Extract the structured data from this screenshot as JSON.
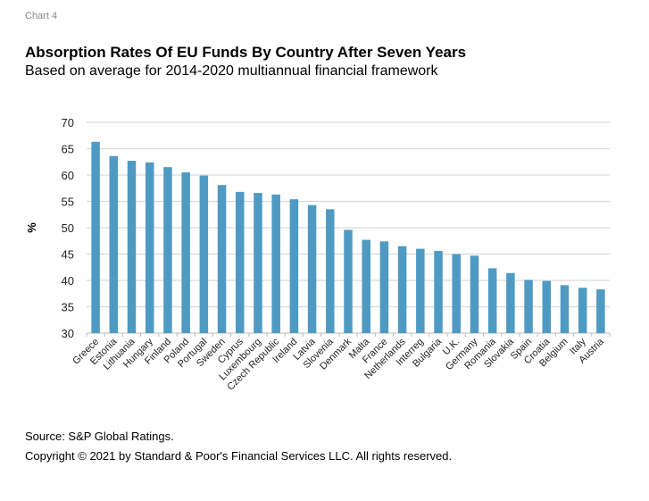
{
  "chart_label": "Chart 4",
  "title": "Absorption Rates Of EU Funds By Country After Seven Years",
  "subtitle": "Based on average for 2014-2020 multiannual financial framework",
  "source": "Source: S&P Global Ratings.",
  "copyright": "Copyright © 2021 by Standard & Poor's Financial Services LLC. All rights reserved.",
  "chart_data": {
    "type": "bar",
    "ylabel": "%",
    "xlabel": "",
    "ylim": [
      30,
      70
    ],
    "yticks": [
      30,
      35,
      40,
      45,
      50,
      55,
      60,
      65,
      70
    ],
    "grid": true,
    "bar_color": "#4f9ac3",
    "categories": [
      "Greece",
      "Estonia",
      "Lithuania",
      "Hungary",
      "Finland",
      "Poland",
      "Portugal",
      "Sweden",
      "Cyprus",
      "Luxembourg",
      "Czech Republic",
      "Ireland",
      "Latvia",
      "Slovenia",
      "Denmark",
      "Malta",
      "France",
      "Netherlands",
      "Interreg",
      "Bulgaria",
      "U.K.",
      "Germany",
      "Romania",
      "Slovakia",
      "Spain",
      "Croatia",
      "Belgium",
      "Italy",
      "Austria"
    ],
    "values": [
      66.3,
      63.6,
      62.7,
      62.4,
      61.5,
      60.5,
      59.9,
      58.1,
      56.8,
      56.6,
      56.3,
      55.4,
      54.3,
      53.5,
      49.6,
      47.7,
      47.4,
      46.5,
      46.0,
      45.6,
      45.0,
      44.7,
      42.3,
      41.4,
      40.1,
      39.9,
      39.1,
      38.6,
      38.3
    ]
  }
}
